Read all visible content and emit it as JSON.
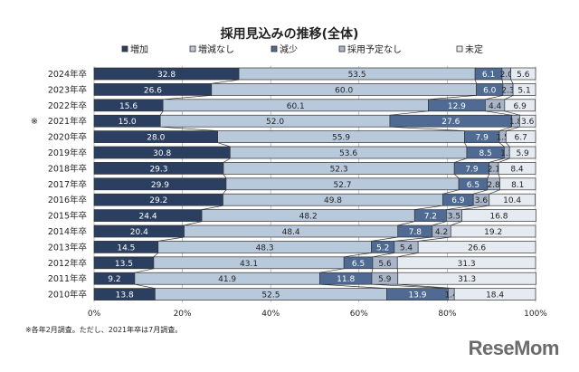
{
  "chart_data": {
    "type": "bar",
    "orientation": "horizontal-stacked-100",
    "title": "採用見込みの推移(全体)",
    "series_names": [
      "増加",
      "増減なし",
      "減少",
      "採用予定なし",
      "未定"
    ],
    "colors": [
      "#2b3f60",
      "#b9c9dc",
      "#4f6b93",
      "#a9b6c9",
      "#e6ebf1"
    ],
    "label_colors": [
      "#ffffff",
      "#222222",
      "#ffffff",
      "#222222",
      "#222222"
    ],
    "categories": [
      "2024年卒",
      "2023年卒",
      "2022年卒",
      "2021年卒",
      "2020年卒",
      "2019年卒",
      "2018年卒",
      "2017年卒",
      "2016年卒",
      "2015年卒",
      "2014年卒",
      "2013年卒",
      "2012年卒",
      "2011年卒",
      "2010年卒"
    ],
    "category_marks": {
      "2021年卒": "※"
    },
    "values": [
      [
        32.8,
        53.5,
        6.1,
        2.0,
        5.6
      ],
      [
        26.6,
        60.0,
        6.0,
        2.3,
        5.1
      ],
      [
        15.6,
        60.1,
        12.9,
        4.4,
        6.9
      ],
      [
        15.0,
        52.0,
        27.6,
        1.8,
        3.6
      ],
      [
        28.0,
        55.9,
        7.9,
        1.5,
        6.7
      ],
      [
        30.8,
        53.6,
        8.5,
        1.2,
        5.9
      ],
      [
        29.3,
        52.3,
        7.9,
        2.1,
        8.4
      ],
      [
        29.9,
        52.7,
        6.5,
        2.8,
        8.1
      ],
      [
        29.2,
        49.8,
        6.9,
        3.6,
        10.4
      ],
      [
        24.4,
        48.2,
        7.2,
        3.5,
        16.8
      ],
      [
        20.4,
        48.4,
        7.8,
        4.2,
        19.2
      ],
      [
        14.5,
        48.3,
        5.2,
        5.4,
        26.6
      ],
      [
        13.5,
        43.1,
        6.5,
        5.6,
        31.3
      ],
      [
        9.2,
        41.9,
        11.8,
        5.9,
        31.3
      ],
      [
        13.8,
        52.5,
        13.9,
        1.4,
        18.4
      ]
    ],
    "xlim": [
      0,
      100
    ],
    "x_ticks": [
      "0%",
      "20%",
      "40%",
      "60%",
      "80%",
      "100%"
    ],
    "legend_position": "top"
  },
  "note": "※各年2月調査。ただし、2021年卒は7月調査。",
  "logo": "ReseMom"
}
